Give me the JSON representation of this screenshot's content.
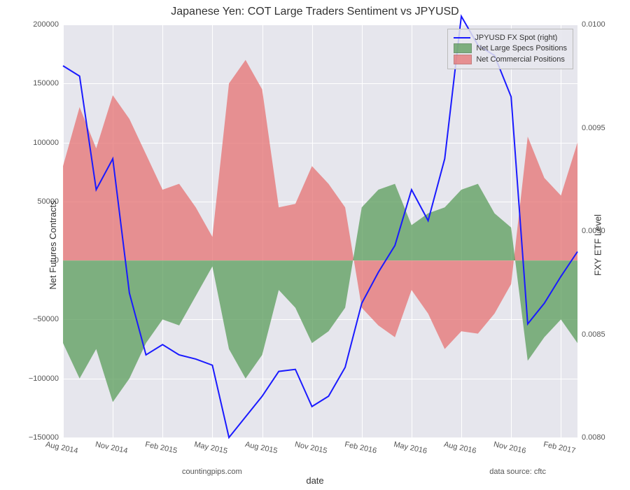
{
  "chart": {
    "type": "area+line dual-axis",
    "title": "Japanese Yen: COT Large Traders Sentiment vs JPYUSD",
    "background_color": "#e6e6ed",
    "grid_color": "#ffffff",
    "title_fontsize": 16,
    "label_fontsize": 13,
    "tick_fontsize": 11,
    "xlabel": "date",
    "ylabel_left": "Net Futures Contracts",
    "ylabel_right": "FXY ETF Level",
    "footer_left": "countingpips.com",
    "footer_right": "data source: cftc",
    "x_ticks": [
      "Aug 2014",
      "Nov 2014",
      "Feb 2015",
      "May 2015",
      "Aug 2015",
      "Nov 2015",
      "Feb 2016",
      "May 2016",
      "Aug 2016",
      "Nov 2016",
      "Feb 2017"
    ],
    "y_left_ticks": [
      -150000,
      -100000,
      -50000,
      0,
      50000,
      100000,
      150000,
      200000
    ],
    "y_left_lim": [
      -150000,
      200000
    ],
    "y_right_ticks": [
      0.008,
      0.0085,
      0.009,
      0.0095,
      0.01
    ],
    "y_right_lim": [
      0.008,
      0.01
    ],
    "legend": {
      "line": {
        "label": "JPYUSD FX Spot (right)",
        "color": "#1a1aff",
        "width": 2
      },
      "specs": {
        "label": "Net Large Specs Positions",
        "color": "#5a9c5a",
        "opacity": 0.75
      },
      "commercial": {
        "label": "Net Commercial Positions",
        "color": "#e67272",
        "opacity": 0.75
      }
    },
    "categories": [
      "Aug 2014",
      "Sep 2014",
      "Oct 2014",
      "Nov 2014",
      "Dec 2014",
      "Jan 2015",
      "Feb 2015",
      "Mar 2015",
      "Apr 2015",
      "May 2015",
      "Jun 2015",
      "Jul 2015",
      "Aug 2015",
      "Sep 2015",
      "Oct 2015",
      "Nov 2015",
      "Dec 2015",
      "Jan 2016",
      "Feb 2016",
      "Mar 2016",
      "Apr 2016",
      "May 2016",
      "Jun 2016",
      "Jul 2016",
      "Aug 2016",
      "Sep 2016",
      "Oct 2016",
      "Nov 2016",
      "Dec 2016",
      "Jan 2017",
      "Feb 2017",
      "Mar 2017"
    ],
    "net_specs": [
      -70000,
      -100000,
      -75000,
      -120000,
      -100000,
      -70000,
      -50000,
      -55000,
      -30000,
      -5000,
      -75000,
      -100000,
      -80000,
      -25000,
      -40000,
      -70000,
      -60000,
      -40000,
      45000,
      60000,
      65000,
      30000,
      40000,
      45000,
      60000,
      65000,
      40000,
      28000,
      -85000,
      -65000,
      -50000,
      -70000
    ],
    "net_commercial": [
      80000,
      130000,
      95000,
      140000,
      120000,
      90000,
      60000,
      65000,
      45000,
      20000,
      150000,
      170000,
      145000,
      45000,
      48000,
      80000,
      65000,
      45000,
      -40000,
      -55000,
      -65000,
      -25000,
      -45000,
      -75000,
      -60000,
      -62000,
      -45000,
      -20000,
      105000,
      70000,
      55000,
      100000
    ],
    "jpyusd_right": [
      0.0098,
      0.00975,
      0.0092,
      0.00935,
      0.0087,
      0.0084,
      0.00845,
      0.0084,
      0.00838,
      0.00835,
      0.008,
      0.0081,
      0.0082,
      0.00832,
      0.00833,
      0.00815,
      0.0082,
      0.00834,
      0.00865,
      0.0088,
      0.00893,
      0.0092,
      0.00905,
      0.00935,
      0.01004,
      0.0099,
      0.00985,
      0.00965,
      0.00855,
      0.00865,
      0.00878,
      0.0089
    ],
    "line_width": 2,
    "area_opacity": 0.75
  }
}
